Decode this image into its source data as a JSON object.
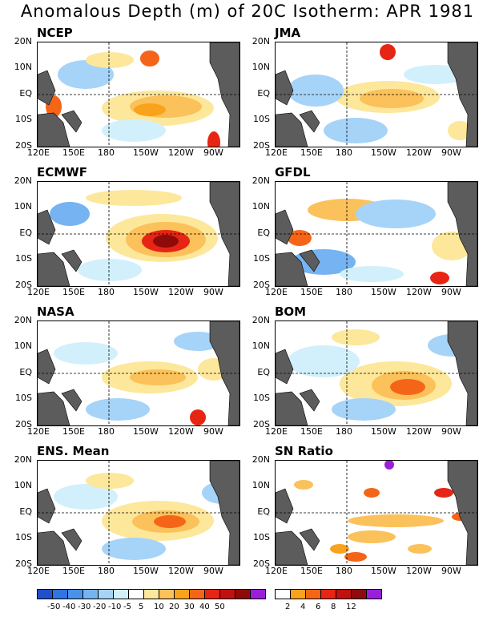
{
  "title": "Anomalous Depth (m) of 20C Isotherm: APR 1981",
  "axes": {
    "lat_labels": [
      "20N",
      "10N",
      "EQ",
      "10S",
      "20S"
    ],
    "lon_labels": [
      "120E",
      "150E",
      "180",
      "150W",
      "120W",
      "90W"
    ]
  },
  "panels": [
    {
      "name": "NCEP"
    },
    {
      "name": "JMA"
    },
    {
      "name": "ECMWF"
    },
    {
      "name": "GFDL"
    },
    {
      "name": "NASA"
    },
    {
      "name": "BOM"
    },
    {
      "name": "ENS. Mean"
    },
    {
      "name": "SN Ratio"
    }
  ],
  "colorbar_left": {
    "colors": [
      "#1f4fc9",
      "#2f74e0",
      "#4a91ea",
      "#75b3f2",
      "#a6d3f8",
      "#d2f0fb",
      "#ffffff",
      "#fde79a",
      "#fbc15a",
      "#f9a31c",
      "#f56518",
      "#e62514",
      "#c01010",
      "#8f0a0a",
      "#9b1fd9"
    ],
    "labels": [
      "-50",
      "-40",
      "-30",
      "-20",
      "-10",
      "-5",
      "5",
      "10",
      "20",
      "30",
      "40",
      "50"
    ]
  },
  "colorbar_right": {
    "colors": [
      "#ffffff",
      "#f9a31c",
      "#f56518",
      "#e62514",
      "#c01010",
      "#8f0a0a",
      "#9b1fd9"
    ],
    "labels": [
      "2",
      "4",
      "6",
      "8",
      "12"
    ]
  },
  "colors": {
    "land": "#5c5c5c",
    "grid": "#000000"
  }
}
